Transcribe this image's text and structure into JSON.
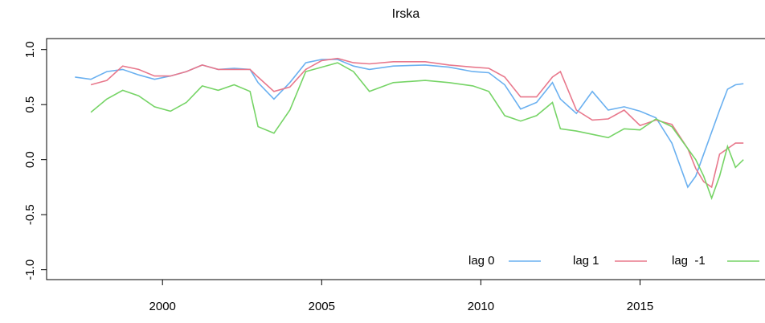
{
  "chart_data": {
    "type": "line",
    "title": "Irska",
    "x": [
      1997.25,
      1997.75,
      1998.25,
      1998.75,
      1999.25,
      1999.75,
      2000.25,
      2000.75,
      2001.25,
      2001.75,
      2002.25,
      2002.75,
      2003.0,
      2003.5,
      2004.0,
      2004.5,
      2005.0,
      2005.5,
      2006.0,
      2006.5,
      2007.25,
      2008.25,
      2009.0,
      2009.75,
      2010.25,
      2010.75,
      2011.25,
      2011.75,
      2012.25,
      2012.5,
      2013.0,
      2013.5,
      2014.0,
      2014.5,
      2015.0,
      2015.5,
      2016.0,
      2016.5,
      2016.75,
      2017.0,
      2017.25,
      2017.5,
      2017.75,
      2018.0,
      2018.25
    ],
    "series": [
      {
        "name": "lag 0",
        "color": "#6ab0f0",
        "values": [
          0.75,
          0.73,
          0.8,
          0.82,
          0.77,
          0.73,
          0.76,
          0.8,
          0.86,
          0.82,
          0.83,
          0.82,
          0.7,
          0.55,
          0.7,
          0.88,
          0.91,
          0.91,
          0.85,
          0.82,
          0.85,
          0.86,
          0.84,
          0.8,
          0.79,
          0.68,
          0.46,
          0.52,
          0.7,
          0.55,
          0.42,
          0.62,
          0.45,
          0.48,
          0.44,
          0.38,
          0.15,
          -0.25,
          -0.15,
          0.05,
          0.25,
          0.45,
          0.64,
          0.68,
          0.69
        ]
      },
      {
        "name": "lag 1",
        "color": "#e8788c",
        "values": [
          null,
          0.68,
          0.72,
          0.85,
          0.82,
          0.76,
          0.76,
          0.8,
          0.86,
          0.82,
          0.82,
          0.82,
          0.75,
          0.62,
          0.66,
          0.82,
          0.9,
          0.92,
          0.88,
          0.87,
          0.89,
          0.89,
          0.86,
          0.84,
          0.83,
          0.75,
          0.57,
          0.57,
          0.75,
          0.8,
          0.45,
          0.36,
          0.37,
          0.45,
          0.31,
          0.36,
          0.32,
          0.1,
          -0.08,
          -0.2,
          -0.25,
          0.05,
          0.1,
          0.15,
          0.15
        ]
      },
      {
        "name": "lag  -1",
        "color": "#76d466",
        "values": [
          null,
          0.43,
          0.55,
          0.63,
          0.58,
          0.48,
          0.44,
          0.52,
          0.67,
          0.63,
          0.68,
          0.62,
          0.3,
          0.24,
          0.45,
          0.8,
          0.84,
          0.88,
          0.8,
          0.62,
          0.7,
          0.72,
          0.7,
          0.67,
          0.62,
          0.4,
          0.35,
          0.4,
          0.52,
          0.28,
          0.26,
          0.23,
          0.2,
          0.28,
          0.27,
          0.37,
          0.3,
          0.1,
          0.0,
          -0.15,
          -0.35,
          -0.15,
          0.12,
          -0.07,
          0.0
        ]
      }
    ],
    "xlim": [
      1996.36,
      2018.9
    ],
    "ylim": [
      -1.09,
      1.1
    ],
    "xticks": [
      2000,
      2005,
      2010,
      2015
    ],
    "yticks": [
      {
        "value": -1,
        "label": "-1.0"
      },
      {
        "value": -0.5,
        "label": "-0.5"
      },
      {
        "value": 0,
        "label": "0.0"
      },
      {
        "value": 0.5,
        "label": "0.5"
      },
      {
        "value": 1,
        "label": "1.0"
      }
    ],
    "legend": "bottomright"
  }
}
